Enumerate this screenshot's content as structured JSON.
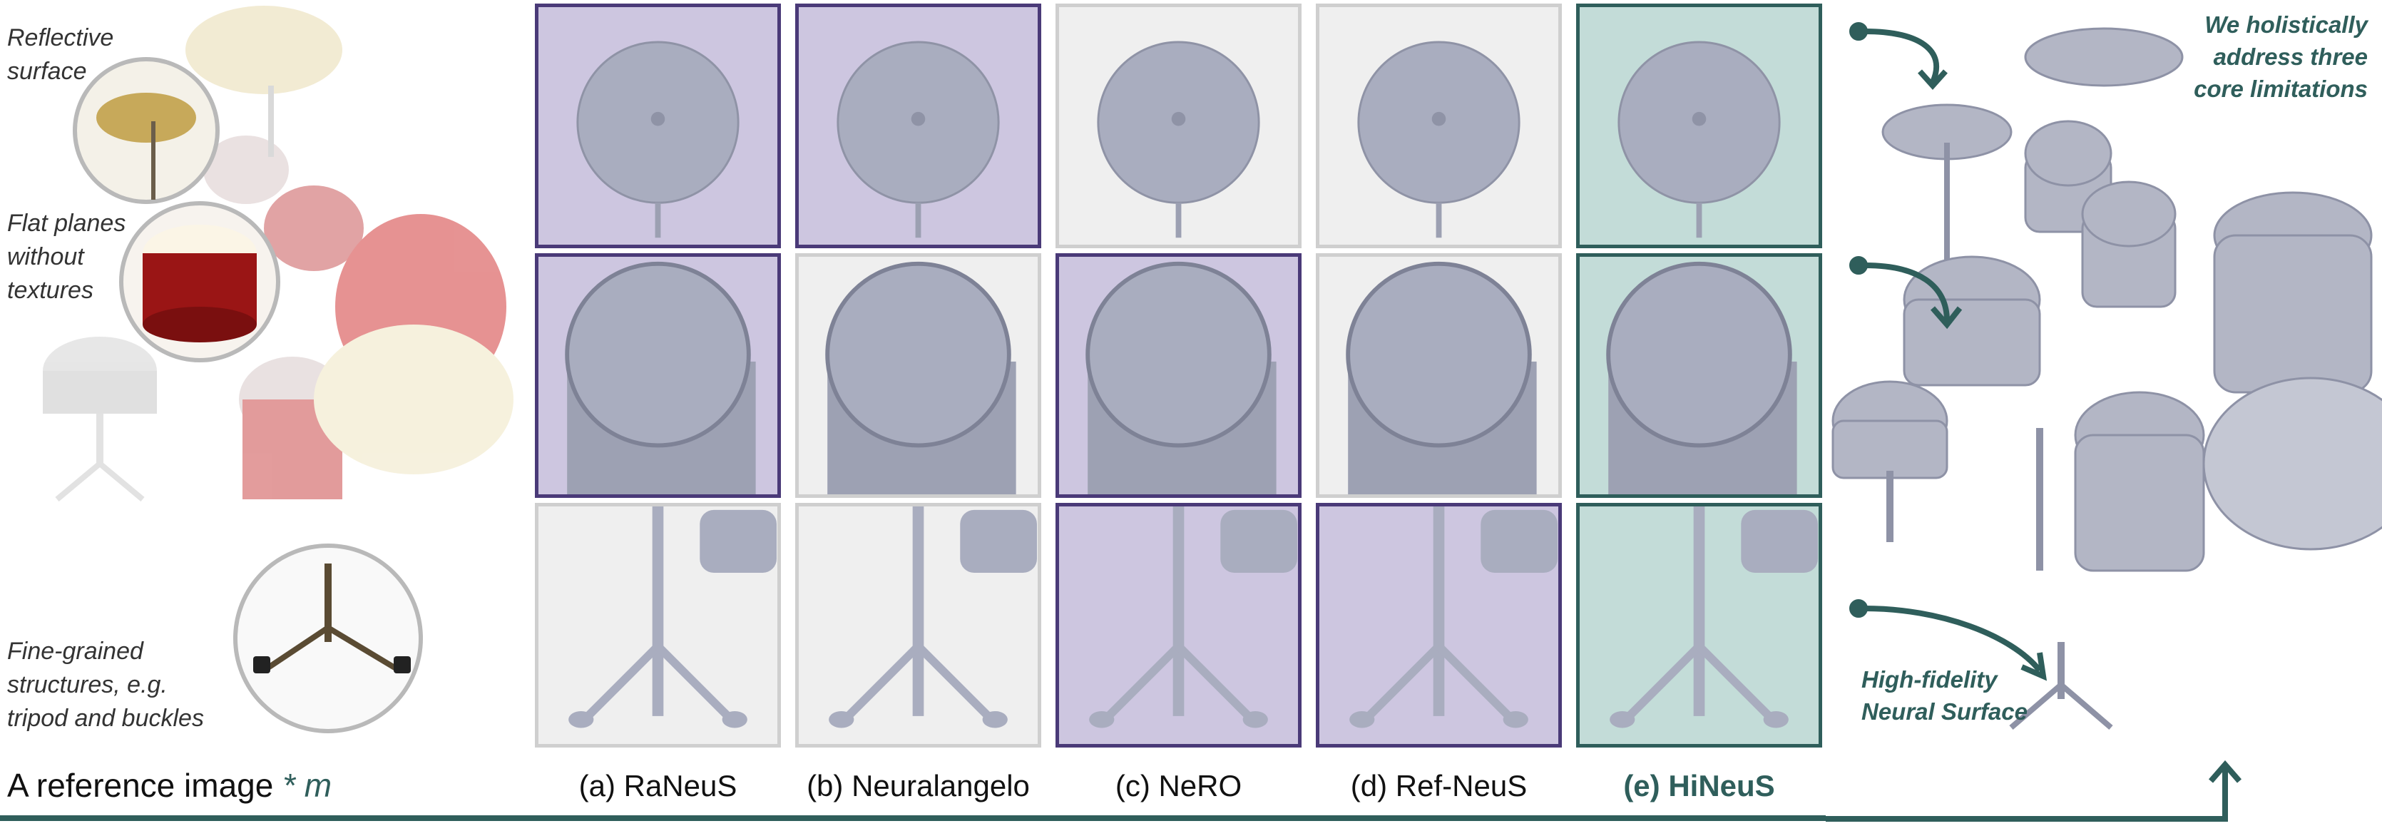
{
  "left_annotations": {
    "reflective": "Reflective\nsurface",
    "flat": "Flat planes\nwithout\ntextures",
    "fine": "Fine-grained\nstructures, e.g.\ntripod and buckles"
  },
  "right_annotations": {
    "holistic": "We holistically\naddress three\ncore limitations",
    "highfid": "High-fidelity\nNeural Surface"
  },
  "reference_label": {
    "text": "A reference image",
    "star": "*",
    "var": "m"
  },
  "methods": [
    {
      "label": "(a) RaNeuS"
    },
    {
      "label": "(b) Neuralangelo"
    },
    {
      "label": "(c) NeRO"
    },
    {
      "label": "(d) Ref-NeuS"
    },
    {
      "label": "(e) HiNeuS"
    }
  ],
  "grid_rows": [
    {
      "row": "cymbal",
      "styles": [
        "purple",
        "purple",
        "gray",
        "gray",
        "teal"
      ]
    },
    {
      "row": "drum",
      "styles": [
        "purple",
        "gray",
        "purple",
        "gray",
        "teal"
      ]
    },
    {
      "row": "stand",
      "styles": [
        "gray",
        "gray",
        "purple",
        "purple",
        "teal"
      ]
    }
  ],
  "colors": {
    "teal": "#2f5e5b",
    "purple_border": "#4a3a78",
    "purple_fill": "#cdc6e0",
    "gray_fill": "#efefef",
    "mesh": "#a9adbf"
  }
}
